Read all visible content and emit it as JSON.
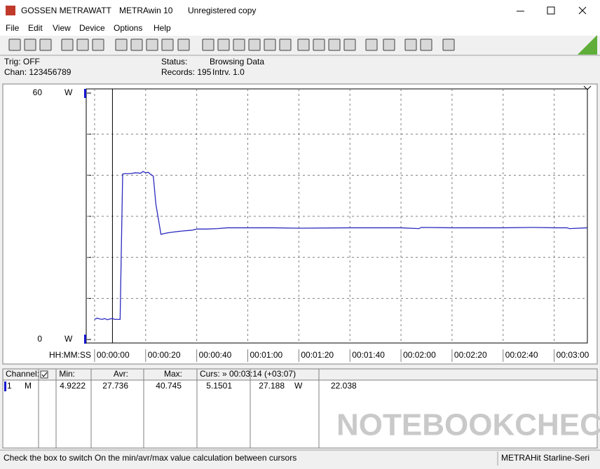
{
  "title_bar": {
    "app": "GOSSEN METRAWATT",
    "product": "METRAwin 10",
    "license": "Unregistered copy"
  },
  "menu": [
    "File",
    "Edit",
    "View",
    "Device",
    "Options",
    "Help"
  ],
  "info": {
    "trigger": "Trig: OFF",
    "channels": "Chan: 123456789",
    "status": "Status:",
    "status_value": "Browsing Data",
    "records": "Records: 195",
    "interval": "Intrv. 1.0"
  },
  "chart_data": {
    "type": "line",
    "x_label": "HH:MM:SS",
    "y_unit_top": "W",
    "y_unit_bottom": "W",
    "xlim": [
      -3,
      193
    ],
    "ylim": [
      0,
      60
    ],
    "yticks": [
      0,
      60
    ],
    "yminor": [
      10,
      20,
      30,
      40,
      50
    ],
    "xticks": [
      {
        "value": 0,
        "label": "00:00:00"
      },
      {
        "value": 20,
        "label": "00:00:20"
      },
      {
        "value": 40,
        "label": "00:00:40"
      },
      {
        "value": 60,
        "label": "00:01:00"
      },
      {
        "value": 80,
        "label": "00:01:20"
      },
      {
        "value": 100,
        "label": "00:01:40"
      },
      {
        "value": 120,
        "label": "00:02:00"
      },
      {
        "value": 140,
        "label": "00:02:20"
      },
      {
        "value": 160,
        "label": "00:02:40"
      },
      {
        "value": 180,
        "label": "00:03:00"
      }
    ],
    "grid": true,
    "cursor": 7,
    "x": [
      0,
      1,
      2,
      3,
      4,
      5,
      6,
      7,
      8,
      9,
      10,
      11,
      12,
      14,
      16,
      18,
      19,
      20,
      21,
      22,
      23,
      24,
      26,
      28,
      30,
      34,
      38,
      40,
      44,
      48,
      52,
      60,
      70,
      80,
      100,
      120,
      127,
      128,
      140,
      160,
      172,
      180,
      185,
      186,
      193
    ],
    "series": [
      {
        "color": "#2b2bbf",
        "values": [
          4.9,
          5.2,
          5.0,
          4.9,
          5.1,
          4.8,
          5.0,
          5.1,
          4.9,
          4.9,
          4.9,
          40.3,
          40.4,
          40.4,
          40.6,
          40.5,
          40.9,
          40.6,
          40.7,
          40.2,
          39.8,
          33.0,
          25.6,
          25.9,
          26.1,
          26.4,
          26.6,
          26.9,
          26.9,
          27.0,
          27.2,
          27.2,
          27.2,
          27.1,
          27.2,
          27.2,
          27.0,
          27.3,
          27.2,
          27.2,
          27.3,
          27.2,
          27.2,
          27.0,
          27.2
        ]
      }
    ]
  },
  "table": {
    "headers": [
      "Channel:",
      "Min:",
      "Avr:",
      "Max:",
      "Curs: » 00:03:14 (+03:07)"
    ],
    "rows": [
      [
        "1",
        "M",
        "4.9222",
        "27.736",
        "40.745",
        "5.1501",
        "27.188",
        "W",
        "22.038"
      ]
    ]
  },
  "watermark": "NOTEBOOKCHECK",
  "status_bar": {
    "hint": "Check the box to switch On the min/avr/max value calculation between cursors",
    "device": "METRAHit Starline-Seri"
  }
}
